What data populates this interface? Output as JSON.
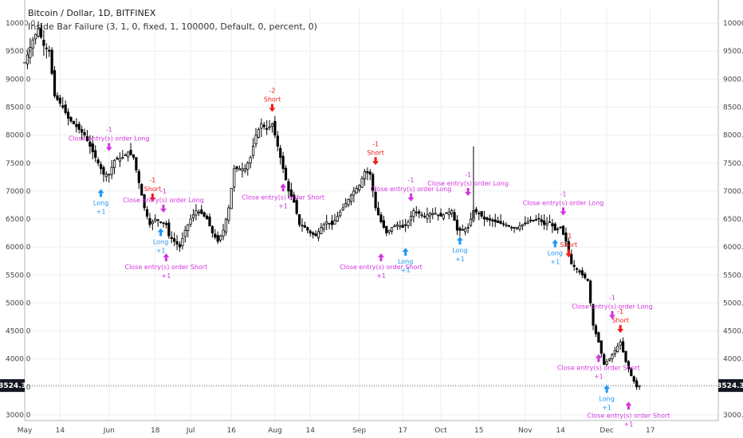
{
  "header": {
    "title": "Bitcoin / Dollar, 1D, BITFINEX",
    "study": "Inside Bar Failure (3, 1, 0, fixed, 1, 100000, Default, 0, percent, 0)"
  },
  "colors": {
    "candle": "#000000",
    "long": "#2196f3",
    "short": "#f21b1b",
    "close": "#d335e0",
    "grid": "#eceff4"
  },
  "chart_data": {
    "type": "candlestick",
    "title": "Bitcoin / Dollar, 1D, BITFINEX",
    "ylim": [
      2900,
      10300
    ],
    "y_ticks": [
      "10000.0",
      "9500.0",
      "9000.0",
      "8500.0",
      "8000.0",
      "7500.0",
      "7000.0",
      "6500.0",
      "6000.0",
      "5500.0",
      "5000.0",
      "4500.0",
      "4000.0",
      "3500.0",
      "3000.0"
    ],
    "x_ticks": [
      {
        "label": "May",
        "day": 0
      },
      {
        "label": "14",
        "day": 13
      },
      {
        "label": "Jun",
        "day": 31
      },
      {
        "label": "18",
        "day": 48
      },
      {
        "label": "Jul",
        "day": 61
      },
      {
        "label": "16",
        "day": 76
      },
      {
        "label": "Aug",
        "day": 92
      },
      {
        "label": "14",
        "day": 105
      },
      {
        "label": "Sep",
        "day": 123
      },
      {
        "label": "17",
        "day": 139
      },
      {
        "label": "Oct",
        "day": 153
      },
      {
        "label": "15",
        "day": 167
      },
      {
        "label": "Nov",
        "day": 184
      },
      {
        "label": "14",
        "day": 197
      },
      {
        "label": "Dec",
        "day": 214
      },
      {
        "label": "17",
        "day": 230
      }
    ],
    "last_price": "3524.3",
    "price_path": [
      [
        0,
        9300
      ],
      [
        3,
        9700
      ],
      [
        5,
        9900
      ],
      [
        7,
        9600
      ],
      [
        9,
        9500
      ],
      [
        11,
        8700
      ],
      [
        14,
        8500
      ],
      [
        16,
        8300
      ],
      [
        19,
        8150
      ],
      [
        22,
        8000
      ],
      [
        25,
        7700
      ],
      [
        27,
        7500
      ],
      [
        29,
        7300
      ],
      [
        31,
        7300
      ],
      [
        33,
        7550
      ],
      [
        36,
        7600
      ],
      [
        38,
        7700
      ],
      [
        40,
        7600
      ],
      [
        42,
        7150
      ],
      [
        44,
        6700
      ],
      [
        46,
        6400
      ],
      [
        48,
        6500
      ],
      [
        50,
        6450
      ],
      [
        52,
        6400
      ],
      [
        53,
        6200
      ],
      [
        55,
        6100
      ],
      [
        57,
        6000
      ],
      [
        59,
        6300
      ],
      [
        61,
        6500
      ],
      [
        63,
        6650
      ],
      [
        65,
        6600
      ],
      [
        67,
        6500
      ],
      [
        69,
        6250
      ],
      [
        71,
        6100
      ],
      [
        73,
        6300
      ],
      [
        75,
        6700
      ],
      [
        77,
        7400
      ],
      [
        79,
        7400
      ],
      [
        81,
        7400
      ],
      [
        83,
        7600
      ],
      [
        85,
        8000
      ],
      [
        87,
        8200
      ],
      [
        89,
        8100
      ],
      [
        91,
        8200
      ],
      [
        93,
        7800
      ],
      [
        95,
        7400
      ],
      [
        97,
        7000
      ],
      [
        99,
        6800
      ],
      [
        101,
        6400
      ],
      [
        103,
        6350
      ],
      [
        105,
        6250
      ],
      [
        107,
        6200
      ],
      [
        109,
        6350
      ],
      [
        111,
        6450
      ],
      [
        113,
        6400
      ],
      [
        115,
        6550
      ],
      [
        117,
        6700
      ],
      [
        119,
        6850
      ],
      [
        121,
        7000
      ],
      [
        123,
        7100
      ],
      [
        125,
        7350
      ],
      [
        127,
        7300
      ],
      [
        129,
        6700
      ],
      [
        131,
        6450
      ],
      [
        133,
        6250
      ],
      [
        135,
        6350
      ],
      [
        137,
        6400
      ],
      [
        139,
        6350
      ],
      [
        141,
        6450
      ],
      [
        143,
        6650
      ],
      [
        145,
        6600
      ],
      [
        147,
        6550
      ],
      [
        149,
        6600
      ],
      [
        151,
        6600
      ],
      [
        153,
        6550
      ],
      [
        155,
        6600
      ],
      [
        157,
        6650
      ],
      [
        159,
        6300
      ],
      [
        161,
        6300
      ],
      [
        163,
        6350
      ],
      [
        165,
        6650
      ],
      [
        167,
        6600
      ],
      [
        169,
        6500
      ],
      [
        171,
        6480
      ],
      [
        173,
        6450
      ],
      [
        175,
        6420
      ],
      [
        177,
        6400
      ],
      [
        179,
        6350
      ],
      [
        181,
        6350
      ],
      [
        183,
        6400
      ],
      [
        185,
        6450
      ],
      [
        187,
        6480
      ],
      [
        189,
        6500
      ],
      [
        191,
        6400
      ],
      [
        193,
        6450
      ],
      [
        195,
        6300
      ],
      [
        197,
        6350
      ],
      [
        199,
        6100
      ],
      [
        201,
        5700
      ],
      [
        203,
        5600
      ],
      [
        205,
        5500
      ],
      [
        207,
        5400
      ],
      [
        209,
        4600
      ],
      [
        211,
        4300
      ],
      [
        213,
        3900
      ],
      [
        215,
        4000
      ],
      [
        217,
        4150
      ],
      [
        219,
        4300
      ],
      [
        221,
        3950
      ],
      [
        223,
        3700
      ],
      [
        225,
        3500
      ],
      [
        226,
        3524
      ]
    ],
    "spikes": [
      [
        165,
        7800
      ]
    ],
    "signals": [
      {
        "type": "long",
        "day": 28,
        "price": 7150,
        "label": "Long",
        "qty": "+1"
      },
      {
        "type": "close",
        "day": 31,
        "price": 7600,
        "label": "Close entry(s) order Long",
        "qty": "-1",
        "pos": "above"
      },
      {
        "type": "short",
        "day": 47,
        "price": 6700,
        "label": "Short",
        "qty": "-1"
      },
      {
        "type": "long",
        "day": 50,
        "price": 6450,
        "label": "Long",
        "qty": "+1"
      },
      {
        "type": "close",
        "day": 51,
        "price": 6500,
        "label": "Close entry(s) order Long",
        "qty": "-1",
        "pos": "above"
      },
      {
        "type": "close",
        "day": 52,
        "price": 6000,
        "label": "Close entry(s) order Short",
        "qty": "+1",
        "pos": "below"
      },
      {
        "type": "short",
        "day": 91,
        "price": 8300,
        "label": "Short",
        "qty": "-2"
      },
      {
        "type": "close",
        "day": 95,
        "price": 7250,
        "label": "Close entry(s) order Short",
        "qty": "+1",
        "pos": "below"
      },
      {
        "type": "short",
        "day": 129,
        "price": 7350,
        "label": "Short",
        "qty": "-1"
      },
      {
        "type": "close",
        "day": 131,
        "price": 6000,
        "label": "Close entry(s) order Short",
        "qty": "+1",
        "pos": "below"
      },
      {
        "type": "long",
        "day": 140,
        "price": 6100,
        "label": "Long",
        "qty": "+1"
      },
      {
        "type": "close",
        "day": 142,
        "price": 6700,
        "label": "Close entry(s) order Long",
        "qty": "-1",
        "pos": "above"
      },
      {
        "type": "long",
        "day": 160,
        "price": 6300,
        "label": "Long",
        "qty": "+1"
      },
      {
        "type": "close",
        "day": 163,
        "price": 6800,
        "label": "Close entry(s) order Long",
        "qty": "-1",
        "pos": "above"
      },
      {
        "type": "long",
        "day": 195,
        "price": 6250,
        "label": "Long",
        "qty": "+1"
      },
      {
        "type": "close",
        "day": 198,
        "price": 6450,
        "label": "Close entry(s) order Long",
        "qty": "-1",
        "pos": "above"
      },
      {
        "type": "short",
        "day": 200,
        "price": 5700,
        "label": "Short",
        "qty": "-1"
      },
      {
        "type": "close",
        "day": 211,
        "price": 4200,
        "label": "Close entry(s) order Short",
        "qty": "+1",
        "pos": "below"
      },
      {
        "type": "close",
        "day": 216,
        "price": 4600,
        "label": "Close entry(s) order Long",
        "qty": "-1",
        "pos": "above"
      },
      {
        "type": "short",
        "day": 219,
        "price": 4350,
        "label": "Short",
        "qty": "-1"
      },
      {
        "type": "long",
        "day": 214,
        "price": 3650,
        "label": "Long",
        "qty": "+1"
      },
      {
        "type": "close",
        "day": 222,
        "price": 3350,
        "label": "Close entry(s) order Short",
        "qty": "+1",
        "pos": "below"
      }
    ]
  }
}
